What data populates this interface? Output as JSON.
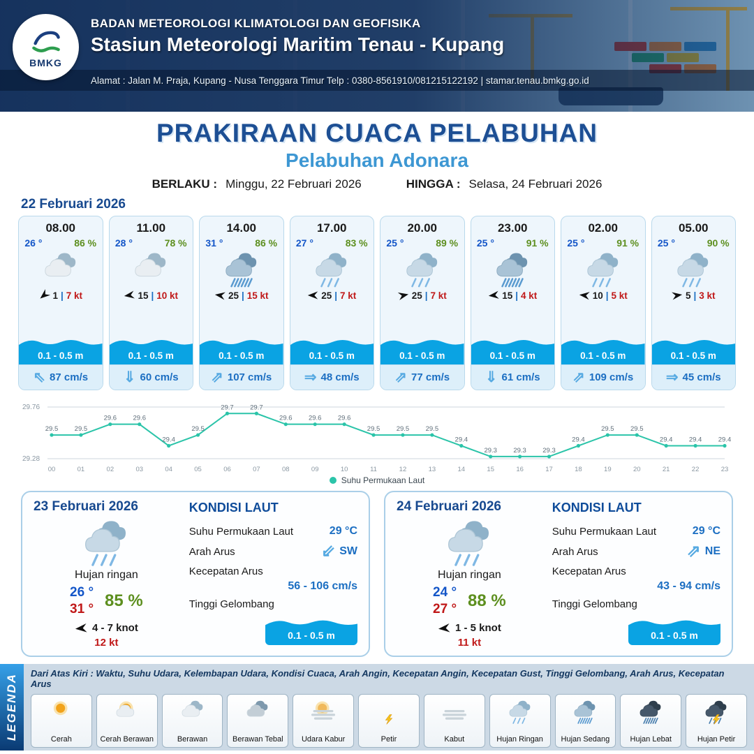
{
  "header": {
    "agency": "BADAN METEOROLOGI KLIMATOLOGI DAN GEOFISIKA",
    "station": "Stasiun Meteorologi Maritim Tenau - Kupang",
    "address": "Alamat : Jalan M. Praja, Kupang - Nusa Tenggara Timur Telp : 0380-8561910/081215122192  | stamar.tenau.bmkg.go.id",
    "logo_text": "BMKG"
  },
  "title": "PRAKIRAAN CUACA PELABUHAN",
  "subtitle": "Pelabuhan Adonara",
  "validity": {
    "berlaku_label": "BERLAKU :",
    "berlaku": "Minggu, 22 Februari 2026",
    "hingga_label": "HINGGA :",
    "hingga": "Selasa, 24 Februari 2026"
  },
  "hourly_date": "22 Februari 2026",
  "misc": {
    "sep": "|"
  },
  "cards": [
    {
      "time": "08.00",
      "temp": "26 °",
      "humidity": "86 %",
      "icon": "berawan",
      "wind_deg": -40,
      "wind": "1",
      "gust": "7 kt",
      "wave": "0.1 - 0.5 m",
      "current_arrow": "⇖",
      "current": "87 cm/s"
    },
    {
      "time": "11.00",
      "temp": "28 °",
      "humidity": "78 %",
      "icon": "berawan",
      "wind_deg": -8,
      "wind": "15",
      "gust": "10 kt",
      "wave": "0.1 - 0.5 m",
      "current_arrow": "⇓",
      "current": "60 cm/s"
    },
    {
      "time": "14.00",
      "temp": "31 °",
      "humidity": "86 %",
      "icon": "hujan-sedang",
      "wind_deg": 8,
      "wind": "25",
      "gust": "15 kt",
      "wave": "0.1 - 0.5 m",
      "current_arrow": "⇗",
      "current": "107 cm/s"
    },
    {
      "time": "17.00",
      "temp": "27 °",
      "humidity": "83 %",
      "icon": "hujan-ringan",
      "wind_deg": 0,
      "wind": "25",
      "gust": "7 kt",
      "wave": "0.1 - 0.5 m",
      "current_arrow": "⇒",
      "current": "48 cm/s"
    },
    {
      "time": "20.00",
      "temp": "25 °",
      "humidity": "89 %",
      "icon": "hujan-ringan",
      "wind_deg": 168,
      "wind": "25",
      "gust": "7 kt",
      "wave": "0.1 - 0.5 m",
      "current_arrow": "⇗",
      "current": "77 cm/s"
    },
    {
      "time": "23.00",
      "temp": "25 °",
      "humidity": "91 %",
      "icon": "hujan-sedang",
      "wind_deg": -6,
      "wind": "15",
      "gust": "4 kt",
      "wave": "0.1 - 0.5 m",
      "current_arrow": "⇓",
      "current": "61 cm/s"
    },
    {
      "time": "02.00",
      "temp": "25 °",
      "humidity": "91 %",
      "icon": "hujan-ringan",
      "wind_deg": 6,
      "wind": "10",
      "gust": "5 kt",
      "wave": "0.1 - 0.5 m",
      "current_arrow": "⇗",
      "current": "109 cm/s"
    },
    {
      "time": "05.00",
      "temp": "25 °",
      "humidity": "90 %",
      "icon": "hujan-ringan",
      "wind_deg": 172,
      "wind": "5",
      "gust": "3 kt",
      "wave": "0.1 - 0.5 m",
      "current_arrow": "⇒",
      "current": "45 cm/s"
    }
  ],
  "chart_data": {
    "type": "line",
    "series_label": "Suhu Permukaan Laut",
    "line_color": "#2bc4a9",
    "ylim": [
      29.28,
      29.76
    ],
    "x": [
      "00",
      "01",
      "02",
      "03",
      "04",
      "05",
      "06",
      "07",
      "08",
      "09",
      "10",
      "11",
      "12",
      "13",
      "14",
      "15",
      "16",
      "17",
      "18",
      "19",
      "20",
      "21",
      "22",
      "23"
    ],
    "values": [
      29.5,
      29.5,
      29.6,
      29.6,
      29.4,
      29.5,
      29.7,
      29.7,
      29.6,
      29.6,
      29.6,
      29.5,
      29.5,
      29.5,
      29.4,
      29.3,
      29.3,
      29.3,
      29.4,
      29.5,
      29.5,
      29.4,
      29.4,
      29.4
    ]
  },
  "daily": [
    {
      "date": "23 Februari 2026",
      "icon": "hujan-ringan",
      "condition": "Hujan ringan",
      "temp_min": "26 °",
      "temp_max": "31 °",
      "humidity": "85 %",
      "wind_deg": -5,
      "wind": "4 - 7 knot",
      "gust": "12 kt",
      "sea": {
        "heading": "KONDISI LAUT",
        "sst_label": "Suhu Permukaan Laut",
        "sst": "29 °C",
        "dir_label": "Arah Arus",
        "dir_arrow": "⇙",
        "dir": "SW",
        "speed_label": "Kecepatan Arus",
        "speed": "56 - 106 cm/s",
        "wave_label": "Tinggi Gelombang",
        "wave": "0.1 - 0.5 m"
      }
    },
    {
      "date": "24 Februari 2026",
      "icon": "hujan-ringan",
      "condition": "Hujan ringan",
      "temp_min": "24 °",
      "temp_max": "27 °",
      "humidity": "88 %",
      "wind_deg": -5,
      "wind": "1 - 5 knot",
      "gust": "11 kt",
      "sea": {
        "heading": "KONDISI LAUT",
        "sst_label": "Suhu Permukaan Laut",
        "sst": "29 °C",
        "dir_label": "Arah Arus",
        "dir_arrow": "⇗",
        "dir": "NE",
        "speed_label": "Kecepatan Arus",
        "speed": "43 - 94 cm/s",
        "wave_label": "Tinggi Gelombang",
        "wave": "0.1 - 0.5 m"
      }
    }
  ],
  "legend": {
    "title": "LEGENDA",
    "description": "Dari Atas Kiri : Waktu, Suhu Udara, Kelembapan Udara, Kondisi Cuaca, Arah Angin, Kecepatan Angin, Kecepatan Gust, Tinggi Gelombang, Arah Arus, Kecepatan Arus",
    "items": [
      {
        "icon": "cerah",
        "label": "Cerah"
      },
      {
        "icon": "cerah-berawan",
        "label": "Cerah Berawan"
      },
      {
        "icon": "berawan",
        "label": "Berawan"
      },
      {
        "icon": "berawan-tebal",
        "label": "Berawan Tebal"
      },
      {
        "icon": "udara-kabur",
        "label": "Udara Kabur"
      },
      {
        "icon": "petir",
        "label": "Petir"
      },
      {
        "icon": "kabut",
        "label": "Kabut"
      },
      {
        "icon": "hujan-ringan",
        "label": "Hujan Ringan"
      },
      {
        "icon": "hujan-sedang",
        "label": "Hujan Sedang"
      },
      {
        "icon": "hujan-lebat",
        "label": "Hujan Lebat"
      },
      {
        "icon": "hujan-petir",
        "label": "Hujan Petir"
      }
    ]
  }
}
